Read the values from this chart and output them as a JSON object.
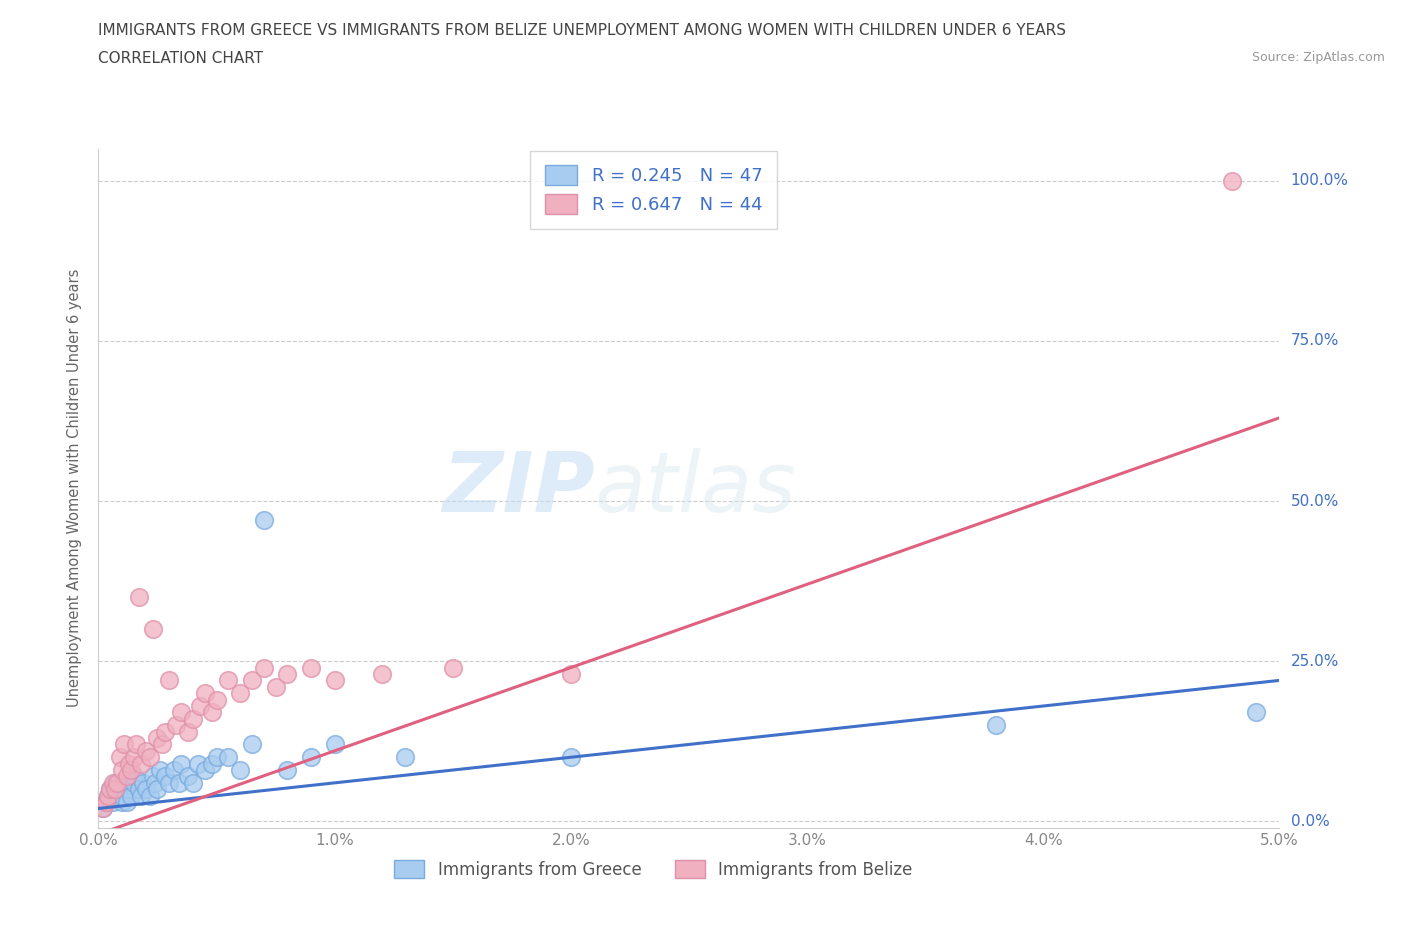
{
  "title_line1": "IMMIGRANTS FROM GREECE VS IMMIGRANTS FROM BELIZE UNEMPLOYMENT AMONG WOMEN WITH CHILDREN UNDER 6 YEARS",
  "title_line2": "CORRELATION CHART",
  "source_text": "Source: ZipAtlas.com",
  "ylabel": "Unemployment Among Women with Children Under 6 years",
  "xlim": [
    0.0,
    0.05
  ],
  "ylim": [
    -0.01,
    1.05
  ],
  "xtick_labels": [
    "0.0%",
    "1.0%",
    "2.0%",
    "3.0%",
    "4.0%",
    "5.0%"
  ],
  "xtick_values": [
    0.0,
    0.01,
    0.02,
    0.03,
    0.04,
    0.05
  ],
  "ytick_labels": [
    "0.0%",
    "25.0%",
    "50.0%",
    "75.0%",
    "100.0%"
  ],
  "ytick_values": [
    0.0,
    0.25,
    0.5,
    0.75,
    1.0
  ],
  "greece_color": "#a8ccf0",
  "belize_color": "#f0b0c0",
  "greece_edge_color": "#7aaade",
  "belize_edge_color": "#e090a8",
  "greece_line_color": "#4070c8",
  "belize_line_color": "#e06080",
  "tick_label_color": "#4070c8",
  "legend_text_color": "#4070c8",
  "greece_R": 0.245,
  "greece_N": 47,
  "belize_R": 0.647,
  "belize_N": 44,
  "watermark_zip": "ZIP",
  "watermark_atlas": "atlas",
  "background_color": "#ffffff",
  "greece_line_intercept": 0.02,
  "greece_line_slope": 4.0,
  "belize_line_intercept": -0.02,
  "belize_line_slope": 13.0,
  "greece_scatter_x": [
    0.0002,
    0.0003,
    0.0004,
    0.0005,
    0.0006,
    0.0007,
    0.0008,
    0.0009,
    0.001,
    0.001,
    0.001,
    0.0012,
    0.0013,
    0.0014,
    0.0015,
    0.0015,
    0.0017,
    0.0018,
    0.0019,
    0.002,
    0.0022,
    0.0023,
    0.0024,
    0.0025,
    0.0026,
    0.0028,
    0.003,
    0.0032,
    0.0034,
    0.0035,
    0.0038,
    0.004,
    0.0042,
    0.0045,
    0.0048,
    0.005,
    0.0055,
    0.006,
    0.0065,
    0.007,
    0.008,
    0.009,
    0.01,
    0.013,
    0.02,
    0.038,
    0.049
  ],
  "greece_scatter_y": [
    0.02,
    0.03,
    0.04,
    0.05,
    0.03,
    0.06,
    0.04,
    0.05,
    0.03,
    0.04,
    0.06,
    0.03,
    0.05,
    0.04,
    0.06,
    0.07,
    0.05,
    0.04,
    0.06,
    0.05,
    0.04,
    0.07,
    0.06,
    0.05,
    0.08,
    0.07,
    0.06,
    0.08,
    0.06,
    0.09,
    0.07,
    0.06,
    0.09,
    0.08,
    0.09,
    0.1,
    0.1,
    0.08,
    0.12,
    0.47,
    0.08,
    0.1,
    0.12,
    0.1,
    0.1,
    0.15,
    0.17
  ],
  "belize_scatter_x": [
    0.0002,
    0.0003,
    0.0004,
    0.0005,
    0.0006,
    0.0007,
    0.0008,
    0.0009,
    0.001,
    0.0011,
    0.0012,
    0.0013,
    0.0014,
    0.0015,
    0.0016,
    0.0017,
    0.0018,
    0.002,
    0.0022,
    0.0023,
    0.0025,
    0.0027,
    0.0028,
    0.003,
    0.0033,
    0.0035,
    0.0038,
    0.004,
    0.0043,
    0.0045,
    0.0048,
    0.005,
    0.0055,
    0.006,
    0.0065,
    0.007,
    0.0075,
    0.008,
    0.009,
    0.01,
    0.012,
    0.015,
    0.02,
    0.048
  ],
  "belize_scatter_y": [
    0.02,
    0.03,
    0.04,
    0.05,
    0.06,
    0.05,
    0.06,
    0.1,
    0.08,
    0.12,
    0.07,
    0.09,
    0.08,
    0.1,
    0.12,
    0.35,
    0.09,
    0.11,
    0.1,
    0.3,
    0.13,
    0.12,
    0.14,
    0.22,
    0.15,
    0.17,
    0.14,
    0.16,
    0.18,
    0.2,
    0.17,
    0.19,
    0.22,
    0.2,
    0.22,
    0.24,
    0.21,
    0.23,
    0.24,
    0.22,
    0.23,
    0.24,
    0.23,
    1.0
  ]
}
